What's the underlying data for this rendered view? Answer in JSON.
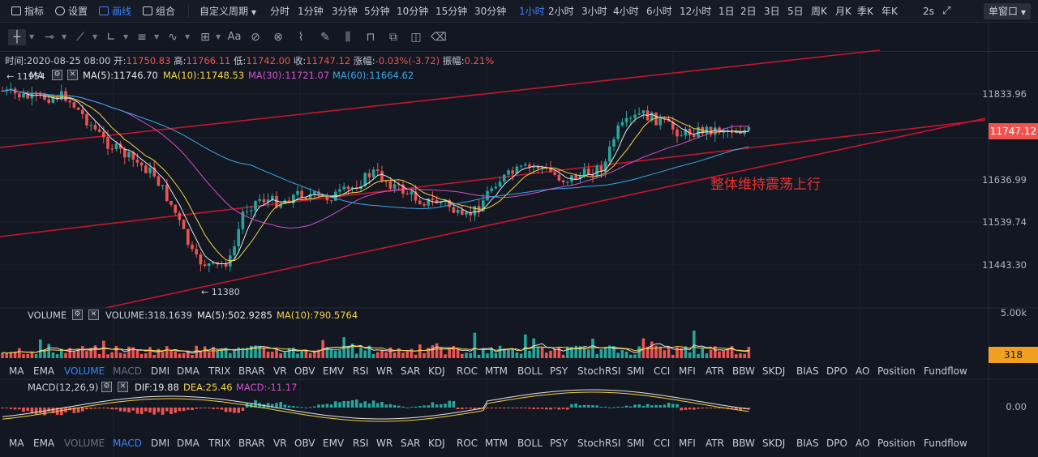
{
  "toolbar_top": {
    "indicators": "指标",
    "settings": "设置",
    "draw": "画线",
    "combo": "组合",
    "custom_period": "自定义周期",
    "periods": [
      "分时",
      "1分钟",
      "3分钟",
      "5分钟",
      "10分钟",
      "15分钟",
      "30分钟",
      "1小时",
      "2小时",
      "3小时",
      "4小时",
      "6小时",
      "12小时",
      "1日",
      "2日",
      "3日",
      "5日",
      "周K",
      "月K",
      "季K",
      "年K"
    ],
    "active_period": "1小时",
    "refresh": "2s",
    "window_mode": "单窗口"
  },
  "info": {
    "time": "时间:2020-08-25 08:00",
    "open_label": "开:",
    "open": "11750.83",
    "high_label": "高:",
    "high": "11766.11",
    "low_label": "低:",
    "low": "11742.00",
    "close_label": "收:",
    "close": "11747.12",
    "chg_label": "涨幅:",
    "chg": "-0.03%(-3.72)",
    "amp_label": "振幅:",
    "amp": "0.21%"
  },
  "ma_legend": {
    "name": "MA",
    "ma5": "MA(5):11746.70",
    "ma10": "MA(10):11748.53",
    "ma30": "MA(30):11721.07",
    "ma60": "MA(60):11664.62"
  },
  "price_axis": {
    "ticks": [
      "11833.96",
      "11636.99",
      "11539.74",
      "11443.30"
    ],
    "last_price": "11747.12"
  },
  "annotations": {
    "low_marker": "← 11380",
    "high_marker": "← 11954",
    "trend_text": "整体维持震荡上行"
  },
  "volume_legend": {
    "name": "VOLUME",
    "volume": "VOLUME:318.1639",
    "ma5": "MA(5):502.9285",
    "ma10": "MA(10):790.5764"
  },
  "volume_axis": {
    "ticks": [
      "5.00k"
    ],
    "last": "318"
  },
  "indicator_tabs": [
    "MA",
    "EMA",
    "VOLUME",
    "MACD",
    "DMI",
    "DMA",
    "TRIX",
    "BRAR",
    "VR",
    "OBV",
    "EMV",
    "RSI",
    "WR",
    "SAR",
    "KDJ",
    "ROC",
    "MTM",
    "BOLL",
    "PSY",
    "StochRSI",
    "SMI",
    "CCI",
    "MFI",
    "ATR",
    "BBW",
    "SKDJ",
    "BIAS",
    "DPO",
    "AO",
    "Position",
    "Fundflow"
  ],
  "macd_legend": {
    "name": "MACD(12,26,9)",
    "dif": "DIF:19.88",
    "dea": "DEA:25.46",
    "macd": "MACD:-11.17"
  },
  "macd_axis": {
    "ticks": [
      "0.00"
    ]
  },
  "colors": {
    "up": "#26a69a",
    "down": "#ef5350",
    "ma5": "#e6e6e6",
    "ma10": "#f5d442",
    "ma30": "#d150c8",
    "ma60": "#3ba6e6",
    "channel": "#c5162c",
    "accent": "#3b82f6",
    "annotation": "#e8312f"
  }
}
